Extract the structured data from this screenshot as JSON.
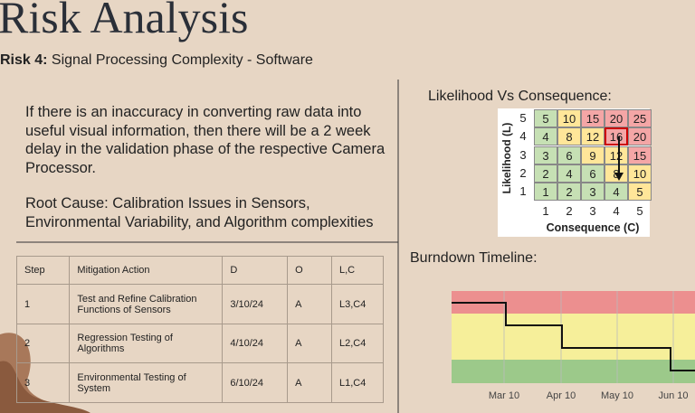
{
  "header": {
    "title": "Risk Analysis",
    "risk_label": "Risk 4:",
    "risk_name": "Signal Processing Complexity - Software"
  },
  "statement": {
    "description": "If there is an inaccuracy in converting raw data into useful visual information, then there will be a 2 week delay in the validation phase of the respective Camera Processor.",
    "root_cause": "Root Cause: Calibration Issues in Sensors, Environmental Variability, and Algorithm complexities"
  },
  "table": {
    "columns": [
      "Step",
      "Mitigation Action",
      "D",
      "O",
      "L,C"
    ],
    "rows": [
      [
        "1",
        "Test and Refine Calibration Functions of Sensors",
        "3/10/24",
        "A",
        "L3,C4"
      ],
      [
        "2",
        "Regression Testing of Algorithms",
        "4/10/24",
        "A",
        "L2,C4"
      ],
      [
        "3",
        "Environmental Testing of System",
        "6/10/24",
        "A",
        "L1,C4"
      ]
    ]
  },
  "matrix": {
    "title": "Likelihood Vs Consequence:",
    "y_label": "Likelihood (L)",
    "x_label": "Consequence (C)",
    "row_labels": [
      5,
      4,
      3,
      2,
      1
    ],
    "col_labels": [
      1,
      2,
      3,
      4,
      5
    ],
    "cells": [
      [
        5,
        10,
        15,
        20,
        25
      ],
      [
        4,
        8,
        12,
        16,
        20
      ],
      [
        3,
        6,
        9,
        12,
        15
      ],
      [
        2,
        4,
        6,
        8,
        10
      ],
      [
        1,
        2,
        3,
        4,
        5
      ]
    ],
    "cell_colors": [
      [
        "#c6e0b4",
        "#ffe699",
        "#f4a6a6",
        "#f4a6a6",
        "#f4a6a6"
      ],
      [
        "#c6e0b4",
        "#ffe699",
        "#ffe699",
        "#f4a6a6",
        "#f4a6a6"
      ],
      [
        "#c6e0b4",
        "#c6e0b4",
        "#ffe699",
        "#ffe699",
        "#f4a6a6"
      ],
      [
        "#c6e0b4",
        "#c6e0b4",
        "#c6e0b4",
        "#ffe699",
        "#ffe699"
      ],
      [
        "#c6e0b4",
        "#c6e0b4",
        "#c6e0b4",
        "#c6e0b4",
        "#ffe699"
      ]
    ]
  },
  "burndown": {
    "title": "Burndown Timeline:",
    "x_labels": [
      "Mar 10",
      "Apr 10",
      "May 10",
      "Jun 10"
    ]
  }
}
